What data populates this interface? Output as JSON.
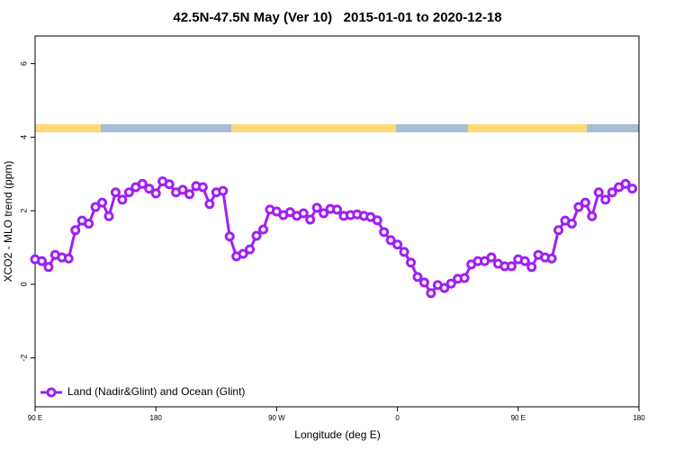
{
  "chart_data": {
    "type": "line",
    "title": "42.5N-47.5N May (Ver 10)   2015-01-01 to 2020-12-18",
    "x_label": "Longitude (deg E)",
    "y_label": "XCO2 - MLO trend (ppm)",
    "x": [
      90,
      95,
      100,
      105,
      110,
      115,
      120,
      125,
      130,
      135,
      140,
      145,
      150,
      155,
      160,
      165,
      170,
      175,
      180,
      185,
      190,
      195,
      200,
      205,
      210,
      215,
      220,
      225,
      230,
      235,
      240,
      245,
      250,
      255,
      260,
      265,
      270,
      275,
      280,
      285,
      290,
      295,
      300,
      305,
      310,
      315,
      320,
      325,
      330,
      335,
      340,
      345,
      350,
      355,
      360,
      365,
      370,
      375,
      380,
      385,
      390,
      395,
      400,
      405,
      410,
      415,
      420,
      425,
      430,
      435,
      440,
      445,
      450,
      455,
      460,
      465,
      470,
      475,
      480,
      485,
      490,
      495,
      500,
      505,
      510,
      515,
      520,
      525,
      530,
      535
    ],
    "series": [
      {
        "name": "Land (Nadir&Glint) and Ocean (Glint)",
        "color": "#a020f0",
        "values": [
          0.68,
          0.63,
          0.47,
          0.8,
          0.73,
          0.7,
          1.47,
          1.73,
          1.65,
          2.1,
          2.22,
          1.85,
          2.5,
          2.3,
          2.5,
          2.64,
          2.73,
          2.6,
          2.47,
          2.8,
          2.72,
          2.5,
          2.57,
          2.45,
          2.67,
          2.64,
          2.18,
          2.5,
          2.54,
          1.3,
          0.76,
          0.83,
          0.95,
          1.32,
          1.49,
          2.03,
          1.98,
          1.88,
          1.96,
          1.86,
          1.93,
          1.76,
          2.08,
          1.93,
          2.05,
          2.03,
          1.86,
          1.88,
          1.9,
          1.86,
          1.83,
          1.74,
          1.42,
          1.2,
          1.08,
          0.88,
          0.59,
          0.2,
          0.05,
          -0.24,
          -0.02,
          -0.1,
          0.02,
          0.15,
          0.17,
          0.54,
          0.63,
          0.63,
          0.73,
          0.56,
          0.49,
          0.49,
          0.68,
          0.63,
          0.47,
          0.8,
          0.73,
          0.7,
          1.47,
          1.73,
          1.65,
          2.1,
          2.22,
          1.85,
          2.5,
          2.3,
          2.5,
          2.64,
          2.73,
          2.6
        ]
      }
    ],
    "xlim": [
      90,
      540
    ],
    "xticks": [
      {
        "value": 90,
        "label": "90 E"
      },
      180,
      {
        "value": 270,
        "label": "90 W"
      },
      {
        "value": 360,
        "label": "0"
      },
      {
        "value": 450,
        "label": "90 E"
      },
      {
        "value": 540,
        "label": "180"
      }
    ],
    "ylim": [
      -3.33,
      6.75
    ],
    "yticks": [
      -2,
      0,
      2,
      4,
      6
    ],
    "legend": "bottomleft"
  }
}
